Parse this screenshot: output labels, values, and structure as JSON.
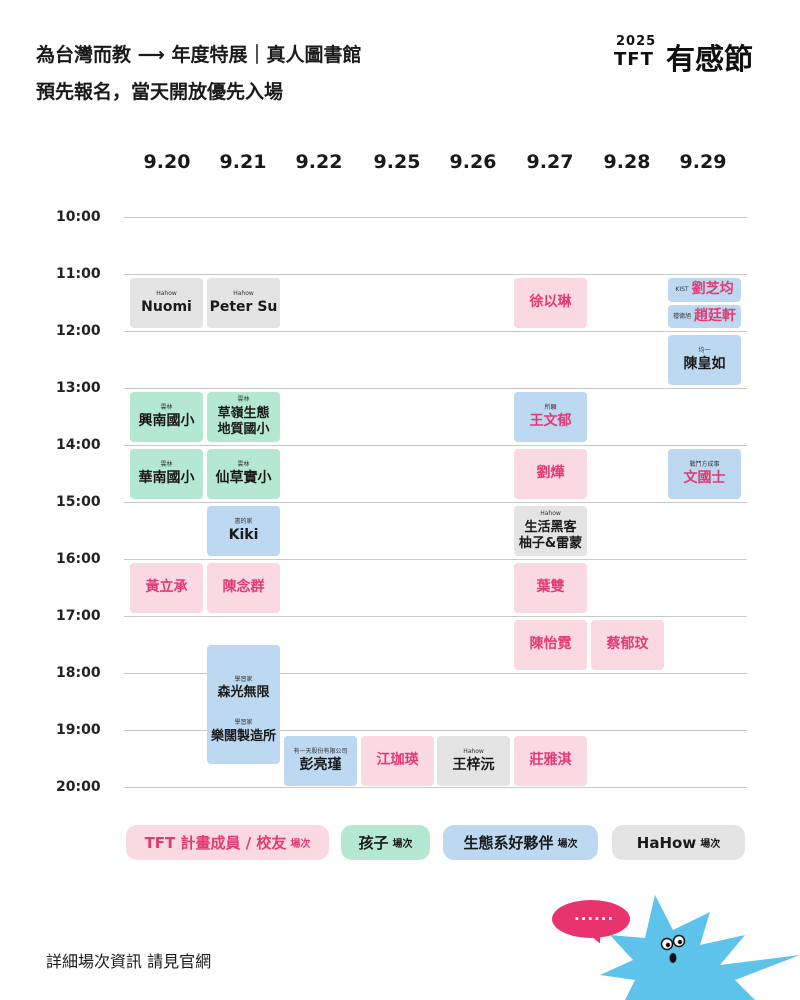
{
  "header": {
    "title_line1": "為台灣而教 ⟶ 年度特展｜真人圖書館",
    "title_line2": "預先報名，當天開放優先入場",
    "logo_year": "2025",
    "logo_tft": "TFT",
    "logo_text": "有感節"
  },
  "dates": [
    "9.20",
    "9.21",
    "9.22",
    "9.25",
    "9.26",
    "9.27",
    "9.28",
    "9.29"
  ],
  "hours": [
    "10:00",
    "11:00",
    "12:00",
    "13:00",
    "14:00",
    "15:00",
    "16:00",
    "17:00",
    "18:00",
    "19:00",
    "20:00"
  ],
  "events": {
    "e1": {
      "sub": "Hahow",
      "name": "Nuomi"
    },
    "e2": {
      "sub": "Hahow",
      "name": "Peter Su"
    },
    "e3": {
      "name": "徐以琳"
    },
    "e4": {
      "sub": "KIST",
      "name": "劉芝均"
    },
    "e5": {
      "sub": "禮德旭",
      "name": "趙廷軒"
    },
    "e6": {
      "sub": "均一",
      "name": "陳皇如"
    },
    "e7": {
      "sub": "雲林",
      "name": "興南國小"
    },
    "e8": {
      "sub": "雲林",
      "name": "草嶺生態",
      "name2": "地質國小"
    },
    "e9": {
      "sub": "所願",
      "name": "王文郁"
    },
    "e10": {
      "sub": "雲林",
      "name": "華南國小"
    },
    "e11": {
      "sub": "雲林",
      "name": "仙草實小"
    },
    "e12": {
      "name": "劉燁"
    },
    "e13": {
      "sub": "戰鬥方成事",
      "name": "文國士"
    },
    "e14": {
      "sub": "書的家",
      "name": "Kiki"
    },
    "e15": {
      "sub": "Hahow",
      "name": "生活黑客",
      "name2": "柚子&雷蒙"
    },
    "e16": {
      "name": "黃立承"
    },
    "e17": {
      "name": "陳念群"
    },
    "e18": {
      "name": "葉雙"
    },
    "e19": {
      "name": "陳怡霓"
    },
    "e20": {
      "name": "蔡郁玟"
    },
    "e21": {
      "sub": "學習家",
      "name": "森光無限",
      "sub2": "學習家",
      "name2": "樂闊製造所"
    },
    "e22": {
      "sub": "有一天股份有限公司",
      "name": "彭亮瑾"
    },
    "e23": {
      "name": "江珈瑛"
    },
    "e24": {
      "sub": "Hahow",
      "name": "王梓沅"
    },
    "e25": {
      "name": "莊雅淇"
    }
  },
  "legend": [
    {
      "label": "TFT 計畫成員 / 校友",
      "suffix": "場次",
      "color": "#fbd9e2",
      "text_color": "#e23a73"
    },
    {
      "label": "孩子",
      "suffix": "場次",
      "color": "#b4e8d2",
      "text_color": "#1a1a1a"
    },
    {
      "label": "生態系好夥伴",
      "suffix": "場次",
      "color": "#bcd9f1",
      "text_color": "#1a1a1a"
    },
    {
      "label": "HaHow",
      "suffix": "場次",
      "color": "#e4e4e4",
      "text_color": "#1a1a1a"
    }
  ],
  "footer": "詳細場次資訊 請見官網",
  "bubble_text": "......",
  "colors": {
    "pink": "#fbd9e2",
    "pink_text": "#e23a73",
    "green": "#b4e8d2",
    "blue": "#bcd9f1",
    "gray": "#e4e4e4",
    "accent": "#e8336f",
    "mascot": "#5ec3ea"
  }
}
